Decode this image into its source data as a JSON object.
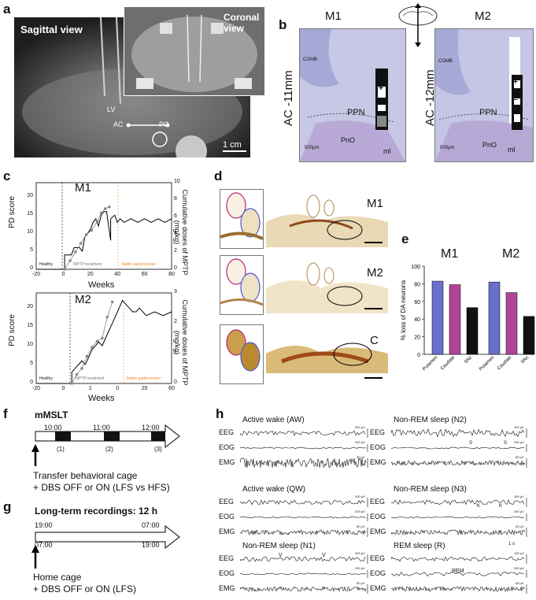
{
  "panels": {
    "a": "a",
    "b": "b",
    "c": "c",
    "d": "d",
    "e": "e",
    "f": "f",
    "g": "g",
    "h": "h"
  },
  "panel_a": {
    "sagittal": "Sagittal view",
    "coronal": "Coronal view",
    "lv": "LV",
    "ac": "AC",
    "pc": "PC",
    "scale": "1 cm"
  },
  "panel_b": {
    "m1": {
      "title": "M1",
      "side": "AC -11mm",
      "ppn": "PPN",
      "pno": "PnO",
      "cgmb": "CGMB",
      "ml": "ml",
      "scale": "500µm",
      "plus": "+",
      "minus": "–"
    },
    "m2": {
      "title": "M2",
      "side": "AC -12mm",
      "ppn": "PPN",
      "pno": "PnO",
      "cgmb": "CGMB",
      "ml": "ml",
      "scale": "500µm",
      "plus": "+",
      "minus": "–"
    }
  },
  "panel_c": {
    "m1": {
      "title": "M1",
      "ylabel": "PD score",
      "y2label": "Cumulative doses of MPTP (mg/kg)",
      "xlabel": "Weeks",
      "healthy": "Healthy",
      "mptp": "MPTP treatment",
      "stable": "Stable parkinsonian",
      "xticks": [
        "-20",
        "0",
        "20",
        "40",
        "60",
        "80"
      ],
      "yticks": [
        "0",
        "5",
        "10",
        "15",
        "20"
      ],
      "y2ticks": [
        "0",
        "2",
        "4",
        "6",
        "8",
        "10"
      ]
    },
    "m2": {
      "title": "M2",
      "ylabel": "PD score",
      "y2label": "Cumulative doses of MPTP (mg/kg)",
      "xlabel": "Weeks",
      "healthy": "Healthy",
      "mptp": "MPTP treatment",
      "stable": "Stable parkinsonian",
      "xticks": [
        "-20",
        "0",
        "1",
        "0",
        "20",
        "60"
      ],
      "yticks": [
        "0",
        "5",
        "10",
        "15",
        "20"
      ],
      "y2ticks": [
        "0",
        "1",
        "2",
        "3"
      ]
    }
  },
  "panel_d": {
    "m1": "M1",
    "m2": "M2",
    "c": "C"
  },
  "chart_data": [
    {
      "type": "bar",
      "panel": "e",
      "ylabel": "% loss of DA neurons",
      "ylim": [
        0,
        100
      ],
      "yticks": [
        "0",
        "20",
        "40",
        "60",
        "80",
        "100"
      ],
      "groups": [
        {
          "name": "M1",
          "categories": [
            "Putamen",
            "Caudate",
            "SNc"
          ],
          "values": [
            83,
            79,
            53
          ]
        },
        {
          "name": "M2",
          "categories": [
            "Putamen",
            "Caudate",
            "SNc"
          ],
          "values": [
            82,
            70,
            43
          ]
        }
      ],
      "colors": [
        "#6a6fc9",
        "#b0449a",
        "#111111"
      ]
    },
    {
      "type": "line",
      "panel": "c-M1",
      "xlim": [
        -20,
        80
      ],
      "ylim": [
        0,
        24
      ],
      "series": [
        {
          "x": [
            -20,
            1,
            1,
            6,
            8,
            12,
            14,
            16,
            18,
            20,
            22,
            24,
            26,
            28,
            30,
            32,
            35,
            35,
            38,
            40,
            42,
            45,
            50,
            55,
            60,
            65,
            70,
            75,
            80
          ],
          "y": [
            0,
            0,
            4,
            4,
            6,
            6,
            5,
            9,
            10,
            11,
            13,
            14,
            12,
            15,
            16,
            16,
            8,
            14,
            15,
            13,
            14,
            13,
            14,
            13,
            14,
            13,
            14,
            13,
            14
          ]
        },
        {
          "x": [
            1,
            5,
            9,
            13,
            17,
            21,
            25,
            28,
            31,
            34
          ],
          "y": [
            0,
            1,
            2,
            3,
            4,
            4.5,
            5.5,
            6.5,
            7,
            7.2
          ]
        }
      ]
    },
    {
      "type": "line",
      "panel": "c-M2",
      "xlim": [
        -20,
        60
      ],
      "ylim": [
        0,
        24
      ],
      "series": [
        {
          "x": [
            -20,
            1,
            1,
            3,
            5,
            7,
            9,
            11,
            13,
            15,
            17,
            19,
            21,
            23,
            25,
            27,
            29,
            31,
            33,
            35,
            37,
            39,
            41,
            45,
            50,
            55,
            60
          ],
          "y": [
            0,
            0,
            3,
            4,
            5,
            6,
            5,
            7,
            9,
            10,
            11,
            10,
            12,
            14,
            16,
            18,
            20,
            22,
            21,
            20,
            19,
            19,
            20,
            18,
            19,
            18,
            19
          ]
        },
        {
          "x": [
            1,
            4,
            7,
            10,
            13,
            16,
            19,
            22,
            25
          ],
          "y": [
            0,
            0.3,
            0.5,
            0.9,
            1.2,
            1.4,
            1.5,
            2.2,
            2.7
          ]
        }
      ]
    }
  ],
  "panel_f": {
    "title": "mMSLT",
    "times": [
      "10:00",
      "11:00",
      "12:00"
    ],
    "blocks": [
      "(1)",
      "(2)",
      "(3)"
    ],
    "line1": "Transfer behavioral cage",
    "line2": "+ DBS OFF or ON (LFS vs HFS)"
  },
  "panel_g": {
    "title": "Long-term recordings: 12 h",
    "top_left": "19:00",
    "top_right": "07:00",
    "bot_left": "07:00",
    "bot_right": "19:00",
    "line1": "Home cage",
    "line2": "+ DBS OFF or ON (LFS)"
  },
  "panel_h": {
    "states": [
      {
        "title": "Active wake (AW)"
      },
      {
        "title": "Non-REM sleep (N2)"
      },
      {
        "title": "Active wake (QW)"
      },
      {
        "title": "Non-REM sleep (N3)"
      },
      {
        "title": "Non-REM sleep (N1)"
      },
      {
        "title": "REM sleep (R)"
      }
    ],
    "channels": [
      "EEG",
      "EOG",
      "EMG"
    ],
    "scale200": "200 µV",
    "scale100": "100 µV",
    "scale50": "50 µV",
    "k": "K",
    "s": "S",
    "v": "V",
    "rem": "REM",
    "time": "1 s"
  }
}
